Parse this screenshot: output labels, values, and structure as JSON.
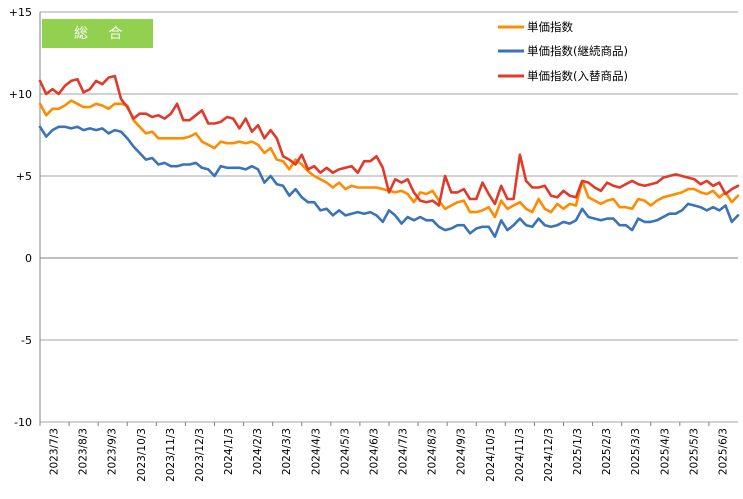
{
  "chart_data": {
    "type": "line",
    "badge": "総 合",
    "ylim": [
      -10,
      15
    ],
    "yticks": [
      "+15",
      "+10",
      "+5",
      "0",
      "-5",
      "-10"
    ],
    "ytick_values": [
      15,
      10,
      5,
      0,
      -5,
      -10
    ],
    "grid": "horizontal",
    "legend_position": "top-right",
    "x_labels": [
      "2023/7/3",
      "2023/8/3",
      "2023/9/3",
      "2023/10/3",
      "2023/11/3",
      "2023/12/3",
      "2024/1/3",
      "2024/2/3",
      "2024/3/3",
      "2024/4/3",
      "2024/5/3",
      "2024/6/3",
      "2024/7/3",
      "2024/8/3",
      "2024/9/3",
      "2024/10/3",
      "2024/11/3",
      "2024/12/3",
      "2025/1/3",
      "2025/2/3",
      "2025/3/3",
      "2025/4/3",
      "2025/5/3",
      "2025/6/3"
    ],
    "series": [
      {
        "name": "単価指数",
        "color": "#ff8c00",
        "values": [
          9.4,
          8.7,
          9.1,
          9.1,
          9.3,
          9.6,
          9.4,
          9.2,
          9.2,
          9.4,
          9.3,
          9.1,
          9.4,
          9.4,
          9.3,
          8.4,
          8.0,
          7.6,
          7.7,
          7.3,
          7.3,
          7.3,
          7.3,
          7.3,
          7.4,
          7.6,
          7.1,
          6.9,
          6.7,
          7.1,
          7.0,
          7.0,
          7.1,
          7.0,
          7.1,
          6.9,
          6.4,
          6.7,
          6.0,
          5.9,
          5.4,
          6.0,
          5.7,
          5.3,
          5.0,
          4.8,
          4.6,
          4.3,
          4.6,
          4.2,
          4.4,
          4.3,
          4.3,
          4.3,
          4.3,
          4.2,
          4.1,
          4.0,
          4.1,
          3.9,
          3.4,
          4.0,
          3.9,
          4.1,
          3.5,
          3.0,
          3.2,
          3.4,
          3.5,
          2.8,
          2.8,
          2.9,
          3.1,
          2.5,
          3.5,
          3.0,
          3.2,
          3.4,
          3.0,
          2.8,
          3.6,
          3.0,
          2.8,
          3.3,
          3.0,
          3.3,
          3.2,
          4.7,
          3.7,
          3.5,
          3.3,
          3.5,
          3.6,
          3.1,
          3.1,
          3.0,
          3.6,
          3.5,
          3.2,
          3.5,
          3.7,
          3.8,
          3.9,
          4.0,
          4.2,
          4.2,
          4.0,
          3.9,
          4.1,
          3.7,
          4.0,
          3.4,
          3.8
        ]
      },
      {
        "name": "単価指数(継続商品)",
        "color": "#3a73b8",
        "values": [
          8.0,
          7.4,
          7.8,
          8.0,
          8.0,
          7.9,
          8.0,
          7.8,
          7.9,
          7.8,
          7.9,
          7.6,
          7.8,
          7.7,
          7.3,
          6.8,
          6.4,
          6.0,
          6.1,
          5.7,
          5.8,
          5.6,
          5.6,
          5.7,
          5.7,
          5.8,
          5.5,
          5.4,
          5.0,
          5.6,
          5.5,
          5.5,
          5.5,
          5.4,
          5.6,
          5.4,
          4.6,
          5.0,
          4.5,
          4.4,
          3.8,
          4.2,
          3.7,
          3.4,
          3.4,
          2.9,
          3.0,
          2.6,
          2.9,
          2.6,
          2.7,
          2.8,
          2.7,
          2.8,
          2.6,
          2.2,
          2.9,
          2.6,
          2.1,
          2.5,
          2.3,
          2.5,
          2.3,
          2.3,
          1.9,
          1.7,
          1.8,
          2.0,
          2.0,
          1.5,
          1.8,
          1.9,
          1.9,
          1.3,
          2.3,
          1.7,
          2.0,
          2.4,
          2.0,
          1.9,
          2.4,
          2.0,
          1.9,
          2.0,
          2.2,
          2.1,
          2.3,
          3.0,
          2.5,
          2.4,
          2.3,
          2.4,
          2.4,
          2.0,
          2.0,
          1.7,
          2.4,
          2.2,
          2.2,
          2.3,
          2.5,
          2.7,
          2.7,
          2.9,
          3.3,
          3.2,
          3.1,
          2.9,
          3.1,
          2.9,
          3.2,
          2.2,
          2.6
        ]
      },
      {
        "name": "単価指数(入替商品)",
        "color": "#e23a2a",
        "values": [
          10.8,
          10.0,
          10.3,
          10.0,
          10.5,
          10.8,
          10.9,
          10.1,
          10.3,
          10.8,
          10.6,
          11.0,
          11.1,
          9.7,
          9.2,
          8.5,
          8.8,
          8.8,
          8.6,
          8.7,
          8.5,
          8.8,
          9.4,
          8.4,
          8.4,
          8.7,
          9.0,
          8.2,
          8.2,
          8.3,
          8.6,
          8.5,
          7.9,
          8.5,
          7.7,
          8.1,
          7.3,
          7.8,
          7.3,
          6.2,
          6.0,
          5.7,
          6.3,
          5.4,
          5.6,
          5.2,
          5.5,
          5.2,
          5.4,
          5.5,
          5.6,
          5.2,
          5.9,
          5.9,
          6.2,
          5.5,
          4.0,
          4.8,
          4.6,
          4.8,
          4.0,
          3.5,
          3.4,
          3.5,
          3.2,
          5.0,
          4.0,
          4.0,
          4.2,
          3.6,
          3.6,
          4.6,
          3.9,
          3.3,
          4.4,
          3.6,
          3.6,
          6.3,
          4.7,
          4.3,
          4.3,
          4.4,
          3.8,
          3.7,
          4.1,
          3.8,
          3.7,
          4.7,
          4.6,
          4.3,
          4.1,
          4.6,
          4.4,
          4.3,
          4.5,
          4.7,
          4.5,
          4.4,
          4.5,
          4.6,
          4.9,
          5.0,
          5.1,
          5.0,
          4.9,
          4.8,
          4.5,
          4.7,
          4.4,
          4.6,
          3.9,
          4.2,
          4.4
        ]
      }
    ]
  }
}
